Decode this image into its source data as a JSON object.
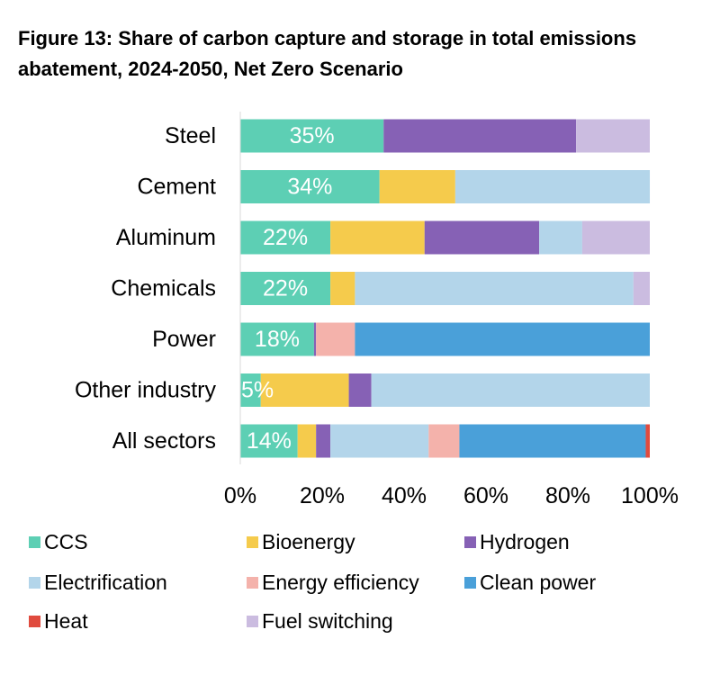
{
  "title": "Figure 13: Share of carbon capture and storage in total emissions abatement, 2024-2050, Net Zero Scenario",
  "chart_data": {
    "type": "bar",
    "orientation": "horizontal",
    "stacked": true,
    "categories": [
      "Steel",
      "Cement",
      "Aluminum",
      "Chemicals",
      "Power",
      "Other industry",
      "All sectors"
    ],
    "xlim": [
      0,
      100
    ],
    "xticks": [
      "0%",
      "20%",
      "40%",
      "60%",
      "80%",
      "100%"
    ],
    "data_labels": [
      "35%",
      "34%",
      "22%",
      "22%",
      "18%",
      "5%",
      "14%"
    ],
    "legend_position": "bottom",
    "series": [
      {
        "name": "CCS",
        "color": "#5dcfb4",
        "values": [
          35,
          34,
          22,
          22,
          18,
          5,
          14
        ]
      },
      {
        "name": "Bioenergy",
        "color": "#f5cb4c",
        "values": [
          0,
          18.5,
          23,
          6,
          0,
          21.5,
          4.5
        ]
      },
      {
        "name": "Hydrogen",
        "color": "#8661b5",
        "values": [
          47,
          0,
          28,
          0,
          0.5,
          5.5,
          3.5
        ]
      },
      {
        "name": "Electrification",
        "color": "#b3d5ea",
        "values": [
          0,
          47.5,
          10.5,
          68,
          0,
          68,
          24
        ]
      },
      {
        "name": "Energy efficiency",
        "color": "#f4b2ab",
        "values": [
          0,
          0,
          0,
          0,
          9.5,
          0,
          7.5
        ]
      },
      {
        "name": "Clean power",
        "color": "#4aa0d9",
        "values": [
          0,
          0,
          0,
          0,
          72,
          0,
          45.5
        ]
      },
      {
        "name": "Heat",
        "color": "#e04b3e",
        "values": [
          0,
          0,
          0,
          0,
          0,
          0,
          1
        ]
      },
      {
        "name": "Fuel switching",
        "color": "#cbbce0",
        "values": [
          18,
          0,
          16.5,
          4,
          0,
          0,
          0
        ]
      }
    ]
  }
}
